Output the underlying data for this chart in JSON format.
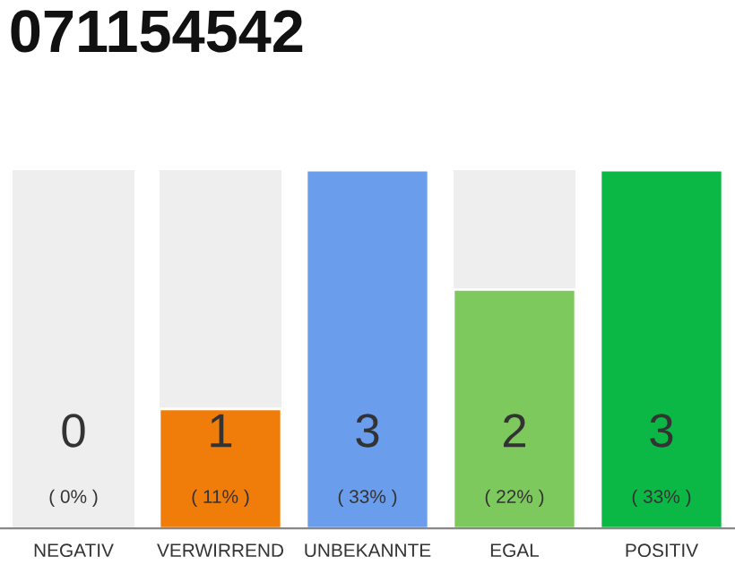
{
  "chart_data": {
    "type": "bar",
    "title": "071154542",
    "categories": [
      "NEGATIV",
      "VERWIRREND",
      "UNBEKANNTE",
      "EGAL",
      "POSITIV"
    ],
    "values": [
      0,
      1,
      3,
      2,
      3
    ],
    "colors": [
      null,
      "#f07c0a",
      "#6a9eec",
      "#7dc95e",
      "#0cb845"
    ],
    "value_labels": [
      "0\n( 0% )",
      "1\n( 11% )",
      "3\n( 33% )",
      "2\n( 22% )",
      "3\n( 33% )"
    ],
    "ylim": [
      0,
      3
    ],
    "grid": false,
    "legend": false
  }
}
